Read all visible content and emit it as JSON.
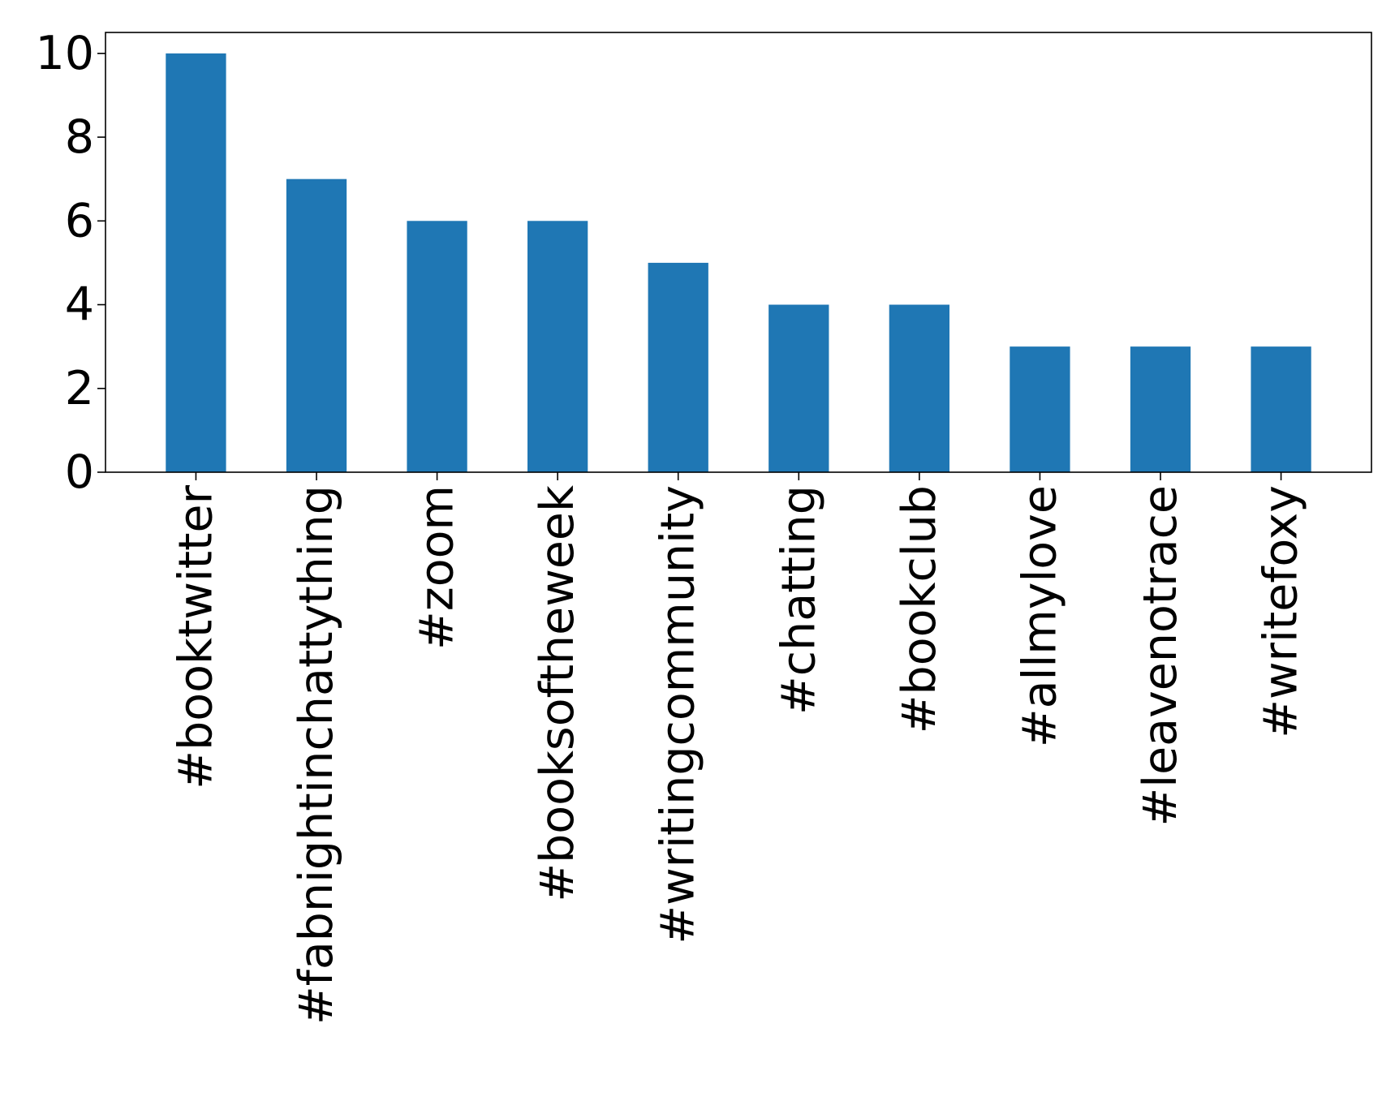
{
  "chart_data": {
    "type": "bar",
    "title": "",
    "xlabel": "",
    "ylabel": "",
    "categories": [
      "#booktwitter",
      "#fabnightinchattything",
      "#zoom",
      "#booksoftheweek",
      "#writingcommunity",
      "#chatting",
      "#bookclub",
      "#allmylove",
      "#leavenotrace",
      "#writefoxy"
    ],
    "values": [
      10,
      7,
      6,
      6,
      5,
      4,
      4,
      3,
      3,
      3
    ],
    "ylim": [
      0,
      10.5
    ],
    "yticks": [
      0,
      2,
      4,
      6,
      8,
      10
    ],
    "grid": false,
    "legend": "none",
    "bar_color": "#1f77b4",
    "x_tick_rotation": 90
  }
}
